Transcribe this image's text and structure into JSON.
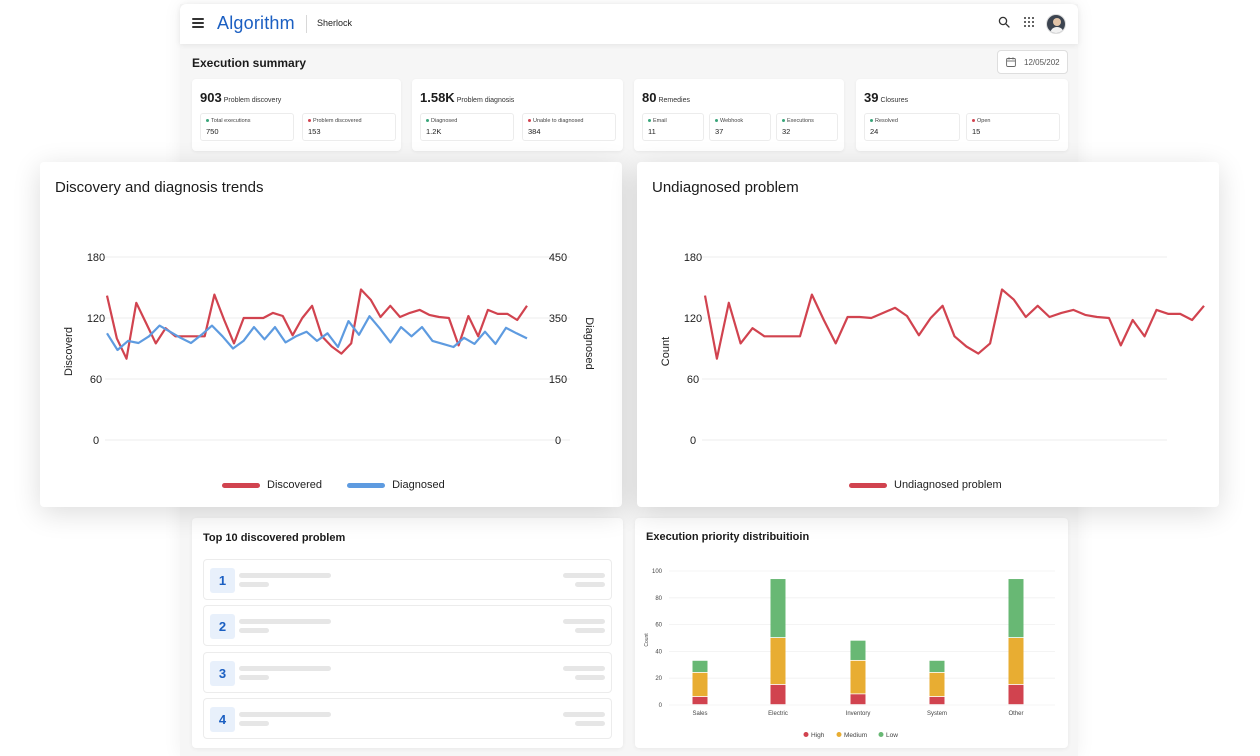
{
  "header": {
    "logo": "Algorithm",
    "workspace": "Sherlock"
  },
  "summary": {
    "title": "Execution summary",
    "date": "12/05/202",
    "kpis": [
      {
        "value": "903",
        "label": "Problem discovery",
        "subs": [
          {
            "label": "Total executions",
            "value": "750",
            "color": "#3aa57a"
          },
          {
            "label": "Problem discovered",
            "value": "153",
            "color": "#d1434f"
          }
        ]
      },
      {
        "value": "1.58K",
        "label": "Problem diagnosis",
        "subs": [
          {
            "label": "Diagnosed",
            "value": "1.2K",
            "color": "#3aa57a"
          },
          {
            "label": "Unable to diagnosed",
            "value": "384",
            "color": "#d1434f"
          }
        ]
      },
      {
        "value": "80",
        "label": "Remedies",
        "subs": [
          {
            "label": "Email",
            "value": "11",
            "color": "#3aa57a"
          },
          {
            "label": "Webhook",
            "value": "37",
            "color": "#3aa57a"
          },
          {
            "label": "Executions",
            "value": "32",
            "color": "#3aa57a"
          }
        ]
      },
      {
        "value": "39",
        "label": "Closures",
        "subs": [
          {
            "label": "Resolved",
            "value": "24",
            "color": "#3aa57a"
          },
          {
            "label": "Open",
            "value": "15",
            "color": "#d1434f"
          }
        ]
      }
    ]
  },
  "top_problems": {
    "title": "Top 10 discovered problem",
    "ranks": [
      "1",
      "2",
      "3",
      "4"
    ]
  },
  "priority": {
    "title": "Execution priority distribuitioin",
    "legend": [
      "High",
      "Medium",
      "Low"
    ],
    "colors": {
      "High": "#d1434f",
      "Medium": "#e8ad32",
      "Low": "#68b874"
    }
  },
  "trend_card": {
    "title": "Discovery and diagnosis trends",
    "legend": [
      "Discovered",
      "Diagnosed"
    ]
  },
  "undiag_card": {
    "title": "Undiagnosed problem",
    "legend": [
      "Undiagnosed problem"
    ]
  },
  "chart_data": [
    {
      "type": "line",
      "title": "Discovery and diagnosis trends",
      "ylabel": "Discoverd",
      "y2label": "Diagnosed",
      "ylim": [
        0,
        180
      ],
      "y2lim": [
        0,
        450
      ],
      "yticks": [
        0,
        60,
        120,
        180
      ],
      "y2ticks": [
        0,
        150,
        350,
        450
      ],
      "grid": true,
      "legend_position": "bottom",
      "series": [
        {
          "name": "Discovered",
          "color": "#d1434f",
          "axis": "left",
          "values": [
            142,
            100,
            80,
            135,
            115,
            95,
            110,
            102,
            102,
            102,
            102,
            143,
            118,
            95,
            120,
            120,
            120,
            125,
            122,
            103,
            120,
            132,
            102,
            92,
            85,
            95,
            148,
            138,
            121,
            132,
            121,
            125,
            128,
            123,
            121,
            120,
            93,
            122,
            102,
            128,
            124,
            124,
            118,
            132
          ]
        },
        {
          "name": "Diagnosed",
          "color": "#5e9be0",
          "axis": "right",
          "values": [
            300,
            245,
            275,
            268,
            290,
            325,
            305,
            285,
            268,
            295,
            325,
            290,
            250,
            275,
            320,
            280,
            320,
            270,
            290,
            305,
            275,
            300,
            255,
            340,
            295,
            353,
            315,
            270,
            320,
            290,
            320,
            275,
            265,
            255,
            285,
            265,
            305,
            265,
            318,
            300,
            283
          ]
        }
      ]
    },
    {
      "type": "line",
      "title": "Undiagnosed problem",
      "ylabel": "Count",
      "ylim": [
        0,
        180
      ],
      "yticks": [
        0,
        60,
        120,
        180
      ],
      "grid": true,
      "legend_position": "bottom",
      "series": [
        {
          "name": "Undiagnosed problem",
          "color": "#d1434f",
          "values": [
            142,
            80,
            135,
            95,
            110,
            102,
            102,
            102,
            102,
            143,
            118,
            95,
            121,
            121,
            120,
            125,
            130,
            122,
            103,
            120,
            132,
            102,
            92,
            85,
            95,
            148,
            138,
            121,
            132,
            121,
            125,
            128,
            123,
            121,
            120,
            93,
            118,
            102,
            128,
            124,
            124,
            118,
            132
          ]
        }
      ]
    },
    {
      "type": "bar",
      "stacked": true,
      "title": "Execution priority distribuitioin",
      "ylabel": "Count",
      "ylim": [
        0,
        100
      ],
      "yticks": [
        0,
        20,
        40,
        60,
        80,
        100
      ],
      "categories": [
        "Sales",
        "Electric",
        "Inventory",
        "System",
        "Other"
      ],
      "series": [
        {
          "name": "High",
          "values": [
            6,
            15,
            8,
            6,
            15
          ]
        },
        {
          "name": "Medium",
          "values": [
            18,
            35,
            25,
            18,
            35
          ]
        },
        {
          "name": "Low",
          "values": [
            9,
            44,
            15,
            9,
            44
          ]
        }
      ],
      "legend_position": "bottom"
    }
  ]
}
